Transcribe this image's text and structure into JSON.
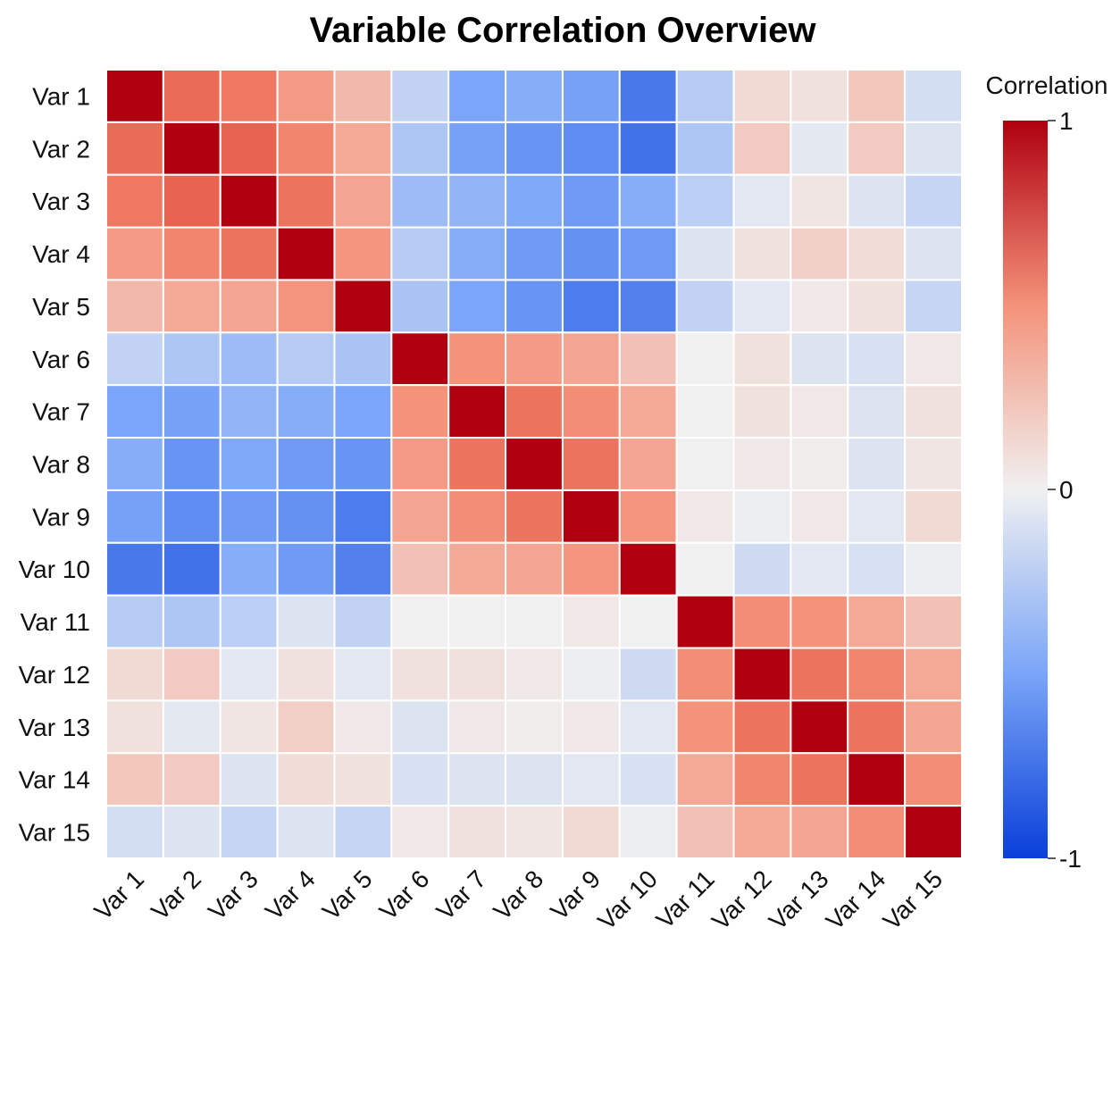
{
  "chart_data": {
    "type": "heatmap",
    "title": "Variable Correlation Overview",
    "x_labels": [
      "Var 1",
      "Var 2",
      "Var 3",
      "Var 4",
      "Var 5",
      "Var 6",
      "Var 7",
      "Var 8",
      "Var 9",
      "Var 10",
      "Var 11",
      "Var 12",
      "Var 13",
      "Var 14",
      "Var 15"
    ],
    "y_labels": [
      "Var 1",
      "Var 2",
      "Var 3",
      "Var 4",
      "Var 5",
      "Var 6",
      "Var 7",
      "Var 8",
      "Var 9",
      "Var 10",
      "Var 11",
      "Var 12",
      "Var 13",
      "Var 14",
      "Var 15"
    ],
    "colorbar": {
      "title": "Correlation",
      "min": -1,
      "max": 1,
      "ticks": [
        1,
        0,
        -1
      ],
      "tick_labels": [
        "1",
        "0",
        "-1"
      ],
      "colormap": "coolwarm",
      "colors": {
        "low": "#0a3fd9",
        "mid": "#f0f0f0",
        "high": "#b00010"
      }
    },
    "matrix": [
      [
        1.0,
        0.65,
        0.6,
        0.45,
        0.3,
        -0.2,
        -0.5,
        -0.45,
        -0.52,
        -0.72,
        -0.25,
        0.12,
        0.08,
        0.22,
        -0.12
      ],
      [
        0.65,
        1.0,
        0.68,
        0.55,
        0.38,
        -0.28,
        -0.52,
        -0.58,
        -0.62,
        -0.75,
        -0.28,
        0.2,
        -0.05,
        0.2,
        -0.08
      ],
      [
        0.6,
        0.68,
        1.0,
        0.62,
        0.4,
        -0.35,
        -0.4,
        -0.48,
        -0.55,
        -0.45,
        -0.22,
        -0.06,
        0.06,
        -0.08,
        -0.18
      ],
      [
        0.45,
        0.55,
        0.62,
        1.0,
        0.48,
        -0.25,
        -0.45,
        -0.55,
        -0.6,
        -0.55,
        -0.08,
        0.08,
        0.18,
        0.1,
        -0.08
      ],
      [
        0.3,
        0.38,
        0.4,
        0.48,
        1.0,
        -0.3,
        -0.5,
        -0.58,
        -0.7,
        -0.68,
        -0.2,
        -0.06,
        0.04,
        0.08,
        -0.18
      ],
      [
        -0.2,
        -0.28,
        -0.35,
        -0.25,
        -0.3,
        1.0,
        0.5,
        0.45,
        0.4,
        0.25,
        0.0,
        0.08,
        -0.08,
        -0.1,
        0.04
      ],
      [
        -0.5,
        -0.52,
        -0.4,
        -0.45,
        -0.5,
        0.5,
        1.0,
        0.62,
        0.52,
        0.38,
        0.0,
        0.08,
        0.04,
        -0.08,
        0.08
      ],
      [
        -0.45,
        -0.58,
        -0.48,
        -0.55,
        -0.58,
        0.45,
        0.62,
        1.0,
        0.62,
        0.4,
        0.0,
        0.04,
        0.02,
        -0.08,
        0.06
      ],
      [
        -0.52,
        -0.62,
        -0.55,
        -0.6,
        -0.7,
        0.4,
        0.52,
        0.62,
        1.0,
        0.48,
        0.04,
        -0.02,
        0.04,
        -0.06,
        0.12
      ],
      [
        -0.72,
        -0.75,
        -0.45,
        -0.55,
        -0.68,
        0.25,
        0.38,
        0.4,
        0.48,
        1.0,
        0.0,
        -0.15,
        -0.06,
        -0.1,
        -0.02
      ],
      [
        -0.25,
        -0.28,
        -0.22,
        -0.08,
        -0.2,
        0.0,
        0.0,
        0.0,
        0.04,
        0.0,
        1.0,
        0.52,
        0.5,
        0.38,
        0.25
      ],
      [
        0.12,
        0.2,
        -0.06,
        0.08,
        -0.06,
        0.08,
        0.08,
        0.04,
        -0.02,
        -0.15,
        0.52,
        1.0,
        0.62,
        0.55,
        0.38
      ],
      [
        0.08,
        -0.05,
        0.06,
        0.18,
        0.04,
        -0.08,
        0.04,
        0.02,
        0.04,
        -0.06,
        0.5,
        0.62,
        1.0,
        0.62,
        0.4
      ],
      [
        0.22,
        0.2,
        -0.08,
        0.1,
        0.08,
        -0.1,
        -0.08,
        -0.08,
        -0.06,
        -0.1,
        0.38,
        0.55,
        0.62,
        1.0,
        0.52
      ],
      [
        -0.12,
        -0.08,
        -0.18,
        -0.08,
        -0.18,
        0.04,
        0.08,
        0.06,
        0.12,
        -0.02,
        0.25,
        0.38,
        0.4,
        0.52,
        1.0
      ]
    ]
  }
}
